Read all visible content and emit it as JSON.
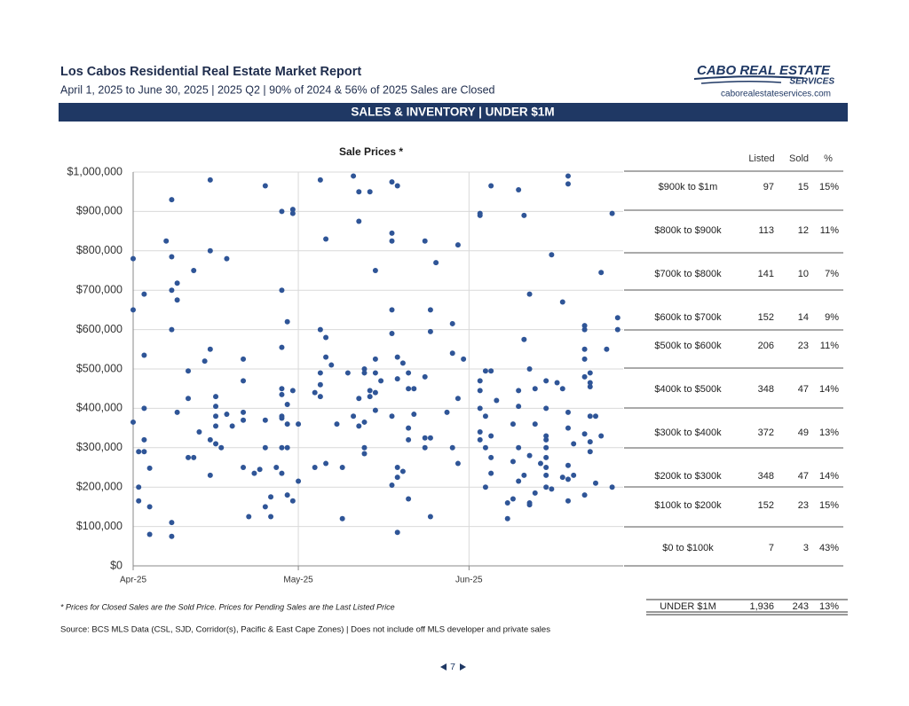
{
  "header": {
    "title": "Los Cabos Residential Real Estate Market Report",
    "subtitle": "April 1, 2025 to June 30, 2025 | 2025 Q2 | 90% of 2024 & 56% of 2025 Sales are Closed",
    "logo": {
      "line1": "CABO REAL ESTATE",
      "line2": "SERVICES",
      "url": "caborealestateservices.com"
    }
  },
  "banner": "SALES & INVENTORY | UNDER $1M",
  "chart_data": {
    "type": "scatter",
    "title": "Sale Prices *",
    "color": "#2f5597",
    "grid": true,
    "xlim": [
      0,
      89
    ],
    "xticks": [
      {
        "value": 0,
        "label": "Apr-25"
      },
      {
        "value": 30,
        "label": "May-25"
      },
      {
        "value": 61,
        "label": "Jun-25"
      }
    ],
    "ylim": [
      0,
      1000000
    ],
    "yticks": [
      {
        "value": 0,
        "label": "$0"
      },
      {
        "value": 100000,
        "label": "$100,000"
      },
      {
        "value": 200000,
        "label": "$200,000"
      },
      {
        "value": 300000,
        "label": "$300,000"
      },
      {
        "value": 400000,
        "label": "$400,000"
      },
      {
        "value": 500000,
        "label": "$500,000"
      },
      {
        "value": 600000,
        "label": "$600,000"
      },
      {
        "value": 700000,
        "label": "$700,000"
      },
      {
        "value": 800000,
        "label": "$800,000"
      },
      {
        "value": 900000,
        "label": "$900,000"
      },
      {
        "value": 1000000,
        "label": "$1,000,000"
      }
    ],
    "x": [
      0,
      0,
      0,
      1,
      1,
      1,
      2,
      2,
      2,
      2,
      2,
      3,
      3,
      3,
      6,
      7,
      7,
      7,
      7,
      7,
      7,
      8,
      8,
      8,
      10,
      10,
      10,
      11,
      11,
      12,
      13,
      14,
      14,
      14,
      14,
      14,
      15,
      15,
      15,
      15,
      15,
      16,
      17,
      17,
      18,
      20,
      20,
      20,
      20,
      20,
      21,
      22,
      23,
      24,
      24,
      24,
      24,
      25,
      25,
      26,
      27,
      27,
      27,
      27,
      27,
      27,
      27,
      27,
      27,
      28,
      28,
      28,
      28,
      28,
      29,
      29,
      29,
      29,
      30,
      30,
      33,
      33,
      34,
      34,
      34,
      34,
      34,
      35,
      35,
      35,
      35,
      36,
      37,
      38,
      38,
      39,
      40,
      40,
      41,
      41,
      41,
      41,
      42,
      42,
      42,
      42,
      42,
      43,
      43,
      43,
      44,
      44,
      44,
      44,
      44,
      45,
      47,
      47,
      47,
      47,
      47,
      47,
      47,
      48,
      48,
      48,
      48,
      48,
      48,
      49,
      49,
      50,
      50,
      50,
      50,
      50,
      51,
      51,
      53,
      53,
      53,
      53,
      54,
      54,
      54,
      54,
      55,
      57,
      58,
      58,
      58,
      59,
      59,
      59,
      60,
      63,
      63,
      63,
      63,
      63,
      63,
      63,
      64,
      64,
      64,
      64,
      65,
      65,
      65,
      65,
      65,
      66,
      68,
      68,
      69,
      69,
      69,
      70,
      70,
      70,
      70,
      70,
      71,
      71,
      71,
      72,
      72,
      72,
      72,
      72,
      73,
      73,
      73,
      74,
      75,
      75,
      75,
      75,
      75,
      75,
      75,
      75,
      75,
      76,
      76,
      77,
      78,
      78,
      78,
      79,
      79,
      79,
      79,
      79,
      79,
      79,
      80,
      80,
      82,
      82,
      82,
      82,
      82,
      82,
      82,
      83,
      83,
      83,
      83,
      83,
      83,
      84,
      84,
      85,
      85,
      86,
      87,
      87,
      88,
      88
    ],
    "values": [
      780000,
      650000,
      365000,
      200000,
      165000,
      290000,
      290000,
      690000,
      535000,
      320000,
      400000,
      150000,
      80000,
      248000,
      825000,
      930000,
      785000,
      700000,
      600000,
      110000,
      75000,
      718000,
      675000,
      390000,
      495000,
      425000,
      275000,
      750000,
      275000,
      340000,
      520000,
      980000,
      800000,
      550000,
      320000,
      230000,
      430000,
      405000,
      380000,
      355000,
      310000,
      300000,
      385000,
      780000,
      355000,
      525000,
      470000,
      390000,
      370000,
      250000,
      125000,
      235000,
      245000,
      965000,
      370000,
      300000,
      150000,
      175000,
      125000,
      250000,
      900000,
      450000,
      380000,
      700000,
      555000,
      435000,
      375000,
      300000,
      235000,
      620000,
      410000,
      360000,
      300000,
      180000,
      905000,
      895000,
      445000,
      165000,
      360000,
      215000,
      440000,
      250000,
      980000,
      600000,
      490000,
      460000,
      430000,
      830000,
      580000,
      530000,
      260000,
      510000,
      360000,
      250000,
      120000,
      490000,
      990000,
      380000,
      950000,
      875000,
      425000,
      355000,
      500000,
      490000,
      365000,
      300000,
      285000,
      950000,
      445000,
      430000,
      750000,
      525000,
      490000,
      440000,
      395000,
      470000,
      975000,
      845000,
      825000,
      650000,
      590000,
      380000,
      205000,
      965000,
      530000,
      475000,
      250000,
      225000,
      85000,
      515000,
      240000,
      490000,
      450000,
      350000,
      320000,
      170000,
      450000,
      385000,
      825000,
      480000,
      325000,
      300000,
      650000,
      595000,
      325000,
      125000,
      770000,
      390000,
      615000,
      540000,
      300000,
      815000,
      425000,
      260000,
      525000,
      895000,
      890000,
      470000,
      445000,
      400000,
      340000,
      320000,
      495000,
      380000,
      300000,
      200000,
      965000,
      495000,
      330000,
      275000,
      235000,
      420000,
      160000,
      120000,
      360000,
      265000,
      170000,
      955000,
      445000,
      405000,
      300000,
      215000,
      890000,
      575000,
      230000,
      690000,
      500000,
      280000,
      160000,
      155000,
      450000,
      360000,
      185000,
      260000,
      470000,
      400000,
      330000,
      320000,
      300000,
      275000,
      250000,
      230000,
      200000,
      790000,
      195000,
      465000,
      670000,
      450000,
      225000,
      990000,
      970000,
      390000,
      350000,
      255000,
      220000,
      165000,
      310000,
      230000,
      610000,
      600000,
      550000,
      525000,
      480000,
      335000,
      180000,
      490000,
      465000,
      455000,
      380000,
      315000,
      290000,
      380000,
      210000,
      745000,
      330000,
      550000,
      895000,
      200000,
      630000,
      600000
    ]
  },
  "table": {
    "columns": [
      "Listed",
      "Sold",
      "%"
    ],
    "rows": [
      [
        "$900k to $1m",
        "97",
        "15",
        "15%"
      ],
      [
        "$800k to $900k",
        "113",
        "12",
        "11%"
      ],
      [
        "$700k to $800k",
        "141",
        "10",
        "7%"
      ],
      [
        "$600k to $700k",
        "152",
        "14",
        "9%"
      ],
      [
        "$500k to $600k",
        "206",
        "23",
        "11%"
      ],
      [
        "$400k to $500k",
        "348",
        "47",
        "14%"
      ],
      [
        "$300k to $400k",
        "372",
        "49",
        "13%"
      ],
      [
        "$200k to $300k",
        "348",
        "47",
        "14%"
      ],
      [
        "$100k to $200k",
        "152",
        "23",
        "15%"
      ],
      [
        "$0 to $100k",
        "7",
        "3",
        "43%"
      ]
    ],
    "total": [
      "UNDER $1M",
      "1,936",
      "243",
      "13%"
    ]
  },
  "footnote": "* Prices for Closed Sales are the Sold Price.  Prices for Pending Sales are the Last Listed Price",
  "source": "Source:  BCS MLS Data (CSL, SJD, Corridor(s), Pacific & East Cape Zones) | Does not include off MLS developer and private sales",
  "page": "7"
}
